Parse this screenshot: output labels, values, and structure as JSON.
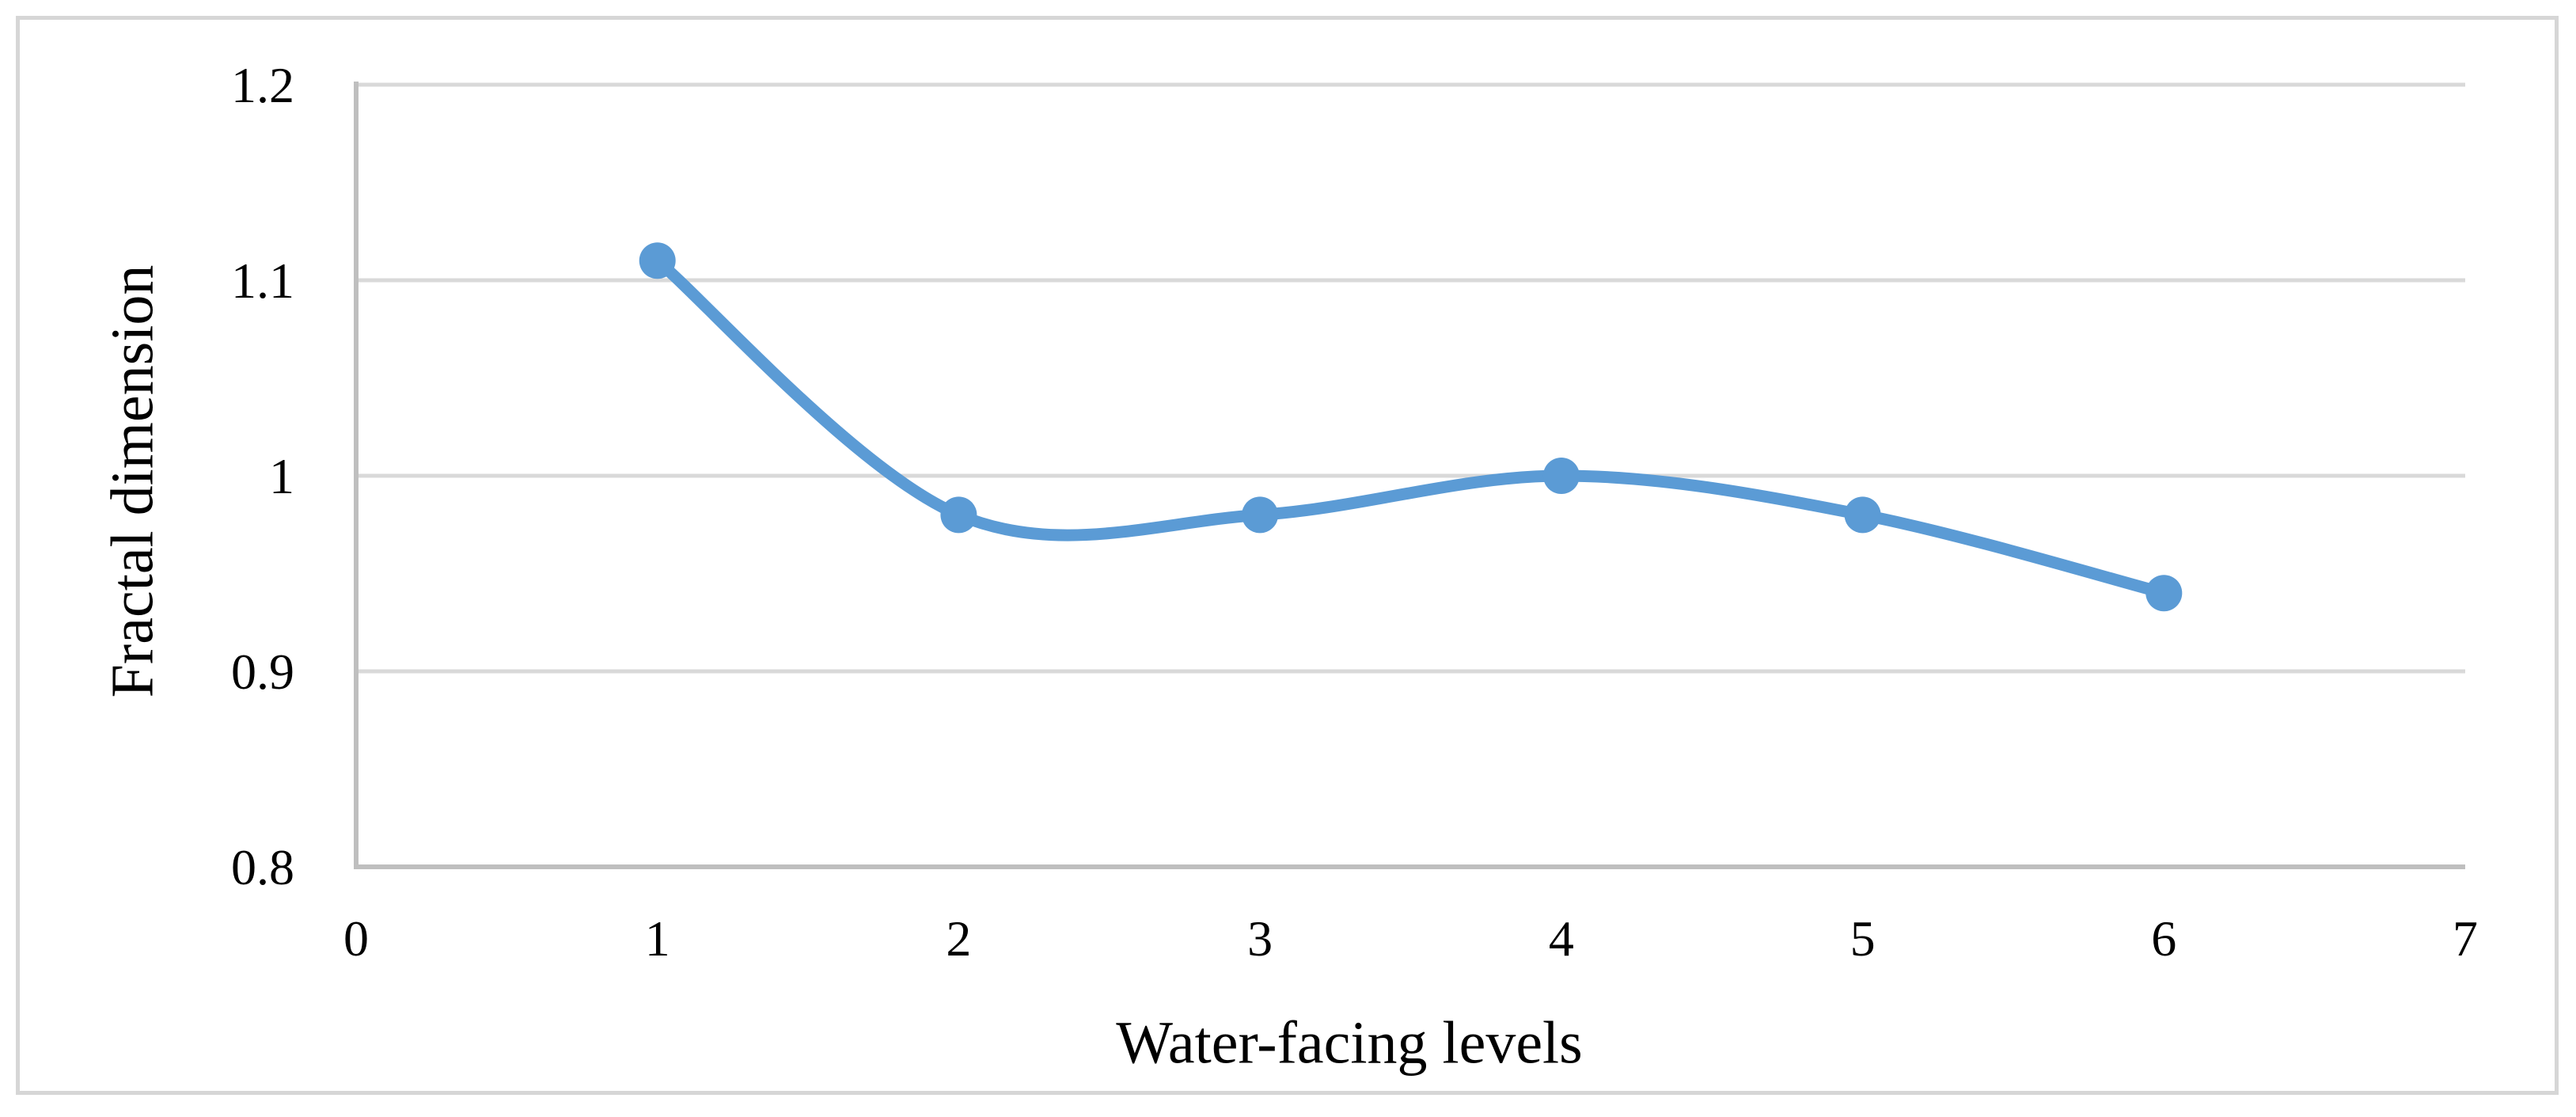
{
  "figure": {
    "background": "#ffffff",
    "border_color": "#d6d6d6"
  },
  "chart_data": {
    "type": "line",
    "title": "",
    "xlabel": "Water-facing levels",
    "ylabel": "Fractal dimension",
    "x": [
      1,
      2,
      3,
      4,
      5,
      6
    ],
    "y": [
      1.11,
      0.98,
      0.98,
      1.0,
      0.98,
      0.94
    ],
    "xlim": [
      0,
      7
    ],
    "ylim": [
      0.8,
      1.2
    ],
    "x_ticks": [
      "0",
      "1",
      "2",
      "3",
      "4",
      "5",
      "6",
      "7"
    ],
    "y_ticks": [
      "0.8",
      "0.9",
      "1",
      "1.1",
      "1.2"
    ],
    "grid": "horizontal",
    "legend": "none",
    "smooth": true,
    "marker": "circle",
    "line_color": "#5b9bd5",
    "gridline_color": "#d9d9d9",
    "axis_color": "#bfbfbf"
  }
}
